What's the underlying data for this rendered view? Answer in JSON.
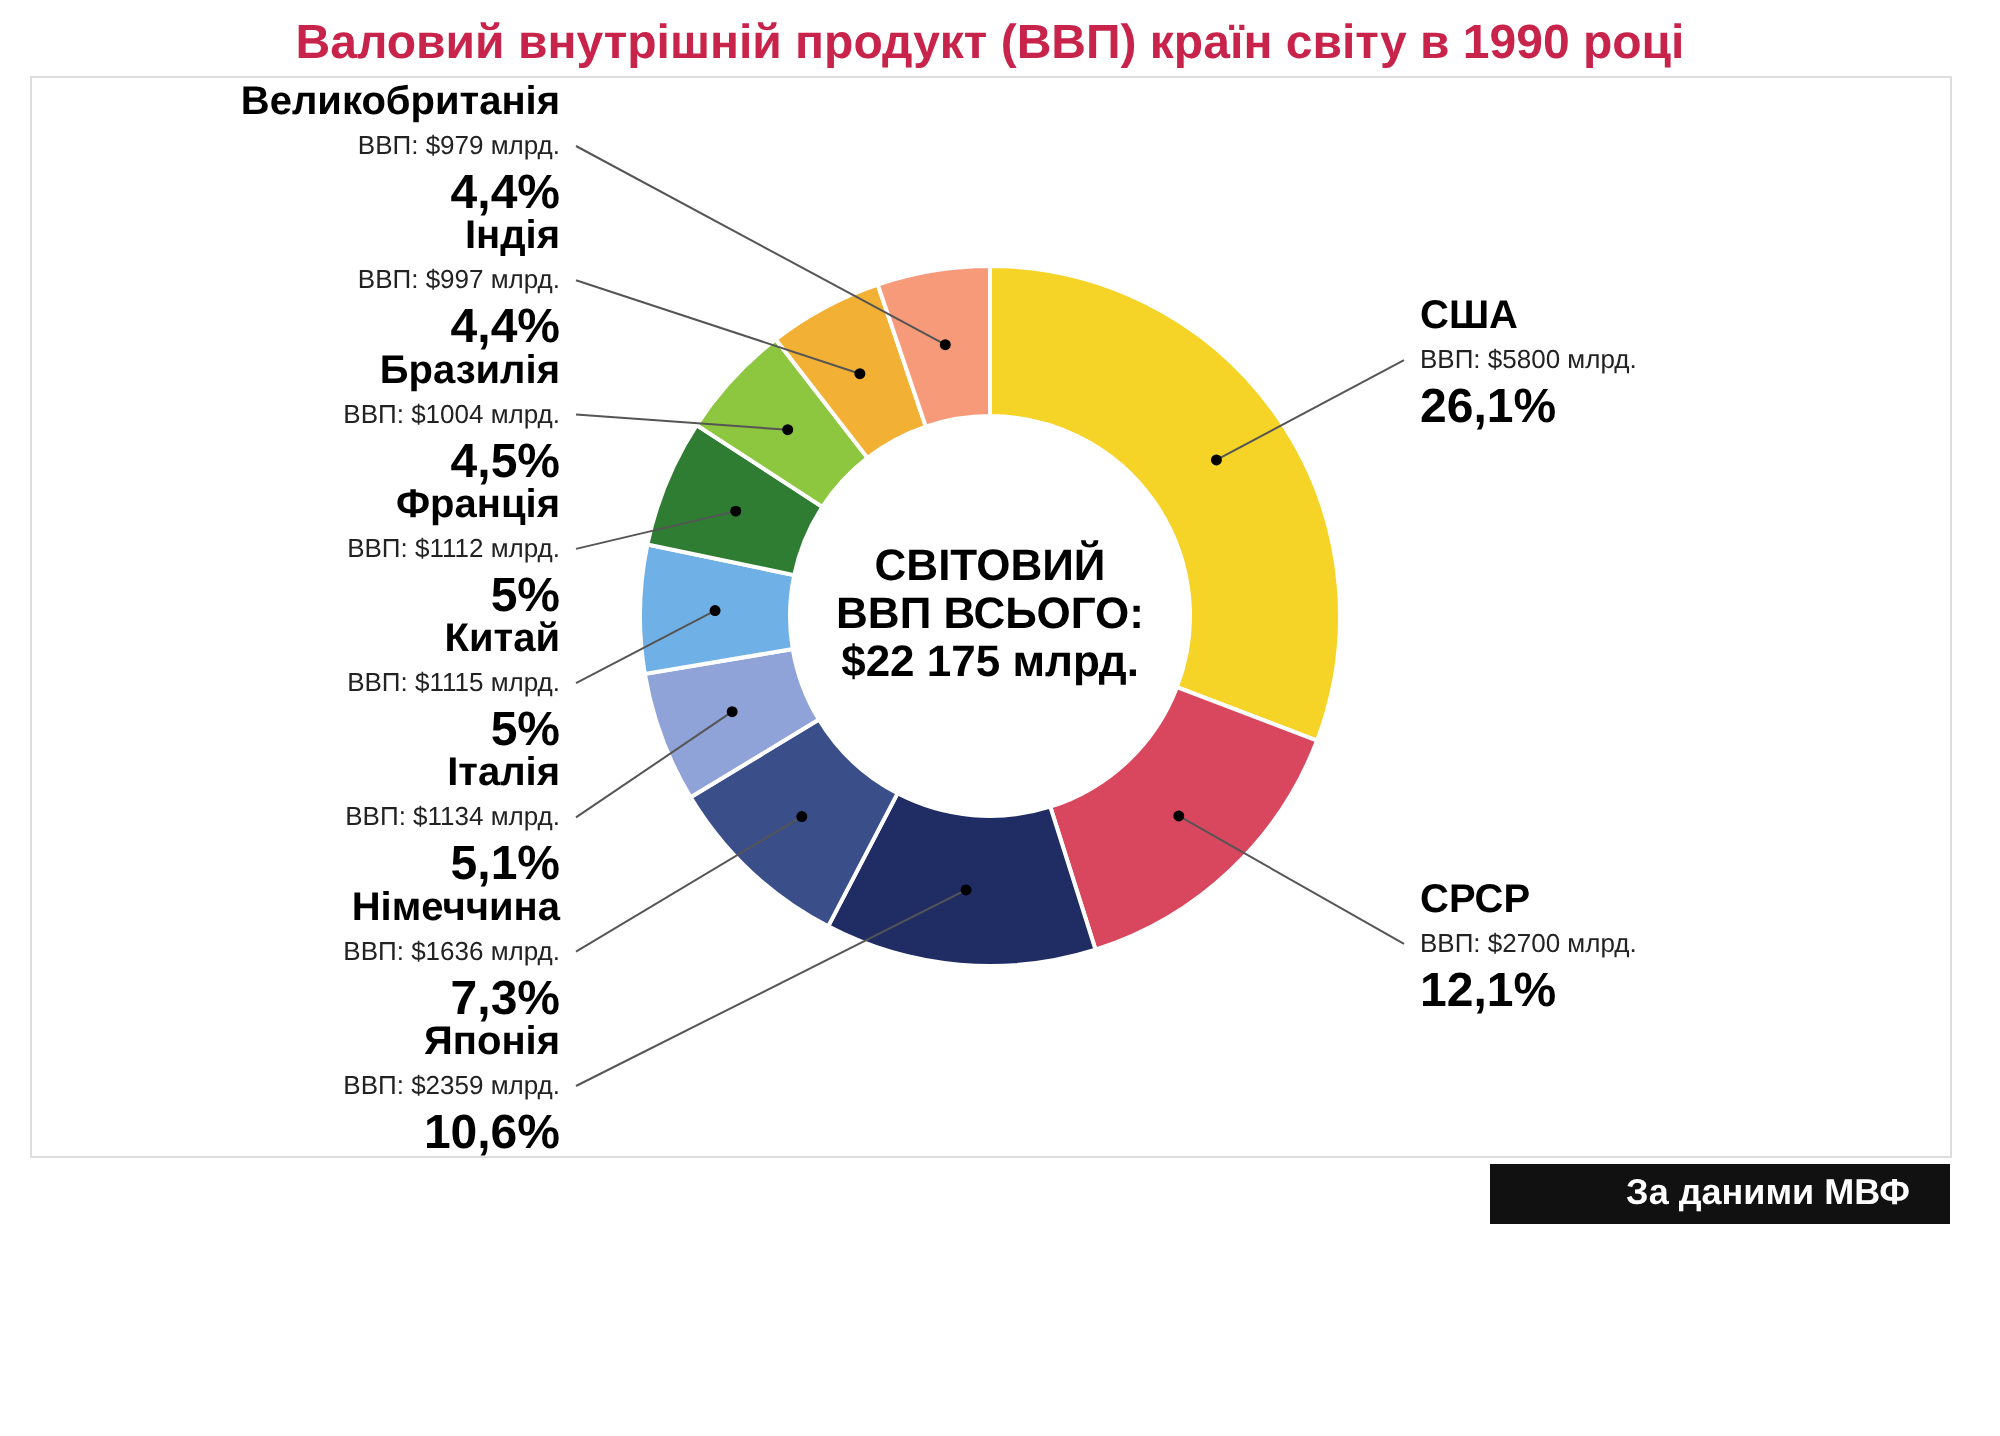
{
  "chart_data": {
    "type": "donut",
    "title": "Валовий внутрішній продукт (ВВП) країн світу в 1990 році",
    "categories": [
      "США",
      "СРСР",
      "Японія",
      "Німеччина",
      "Італія",
      "Китай",
      "Франція",
      "Бразилія",
      "Індія",
      "Великобританія"
    ],
    "values": [
      5800,
      2700,
      2359,
      1636,
      1134,
      1115,
      1112,
      1004,
      997,
      979
    ],
    "value_labels": [
      "ВВП: $5800 млрд.",
      "ВВП: $2700 млрд.",
      "ВВП: $2359 млрд.",
      "ВВП: $1636 млрд.",
      "ВВП: $1134 млрд.",
      "ВВП: $1115 млрд.",
      "ВВП: $1112 млрд.",
      "ВВП: $1004 млрд.",
      "ВВП: $997 млрд.",
      "ВВП: $979 млрд."
    ],
    "colors": [
      "#f5d327",
      "#d9475f",
      "#1f2d64",
      "#3a4f8a",
      "#8fa3d8",
      "#6fb1e6",
      "#2f7d32",
      "#8dc63f",
      "#f2b134",
      "#f79a7a"
    ],
    "annotations": [
      {
        "text": "26,1%",
        "x": "США"
      },
      {
        "text": "12,1%",
        "x": "СРСР"
      },
      {
        "text": "10,6%",
        "x": "Японія"
      },
      {
        "text": "7,3%",
        "x": "Німеччина"
      },
      {
        "text": "5,1%",
        "x": "Італія"
      },
      {
        "text": "5%",
        "x": "Китай"
      },
      {
        "text": "5%",
        "x": "Франція"
      },
      {
        "text": "4,5%",
        "x": "Бразилія"
      },
      {
        "text": "4,4%",
        "x": "Індія"
      },
      {
        "text": "4,4%",
        "x": "Великобританія"
      },
      "СВІТОВИЙ\nВВП ВСЬОГО:\n$22 175 млрд.",
      "За даними МВФ"
    ],
    "legend": false
  }
}
